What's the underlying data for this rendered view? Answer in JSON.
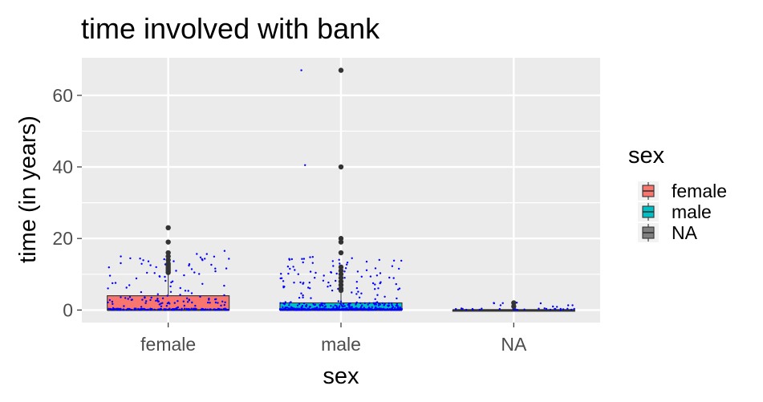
{
  "chart_data": {
    "type": "box",
    "title": "time involved with bank",
    "xlabel": "sex",
    "ylabel": "time (in years)",
    "categories": [
      "female",
      "male",
      "NA"
    ],
    "ylim": [
      -3.5,
      70.5
    ],
    "yticks": [
      0,
      20,
      40,
      60
    ],
    "grid": true,
    "legend": {
      "title": "sex",
      "position": "right",
      "entries": [
        "female",
        "male",
        "NA"
      ]
    },
    "colors": {
      "female": "#F8766D",
      "male": "#00BFC4",
      "NA": "#7F7F7F",
      "jitter_points": "#0000FF",
      "outliers": "#333333",
      "panel_background": "#EBEBEB",
      "grid": "#FFFFFF"
    },
    "series": [
      {
        "name": "female",
        "min": 0,
        "q1": 0,
        "median": 0,
        "q3": 4,
        "whisker_high": 10,
        "outliers": [
          10.5,
          11,
          11.5,
          12,
          12.5,
          13,
          14,
          15,
          16,
          19,
          23
        ]
      },
      {
        "name": "male",
        "min": 0,
        "q1": 0,
        "median": 0,
        "q3": 2,
        "whisker_high": 5,
        "outliers": [
          5.5,
          6,
          7,
          8,
          9,
          10,
          11,
          12,
          16,
          19,
          20,
          40,
          67
        ]
      },
      {
        "name": "NA",
        "min": 0,
        "q1": 0,
        "median": 0,
        "q3": 0,
        "whisker_high": 0,
        "outliers": [
          1,
          2
        ]
      }
    ]
  }
}
